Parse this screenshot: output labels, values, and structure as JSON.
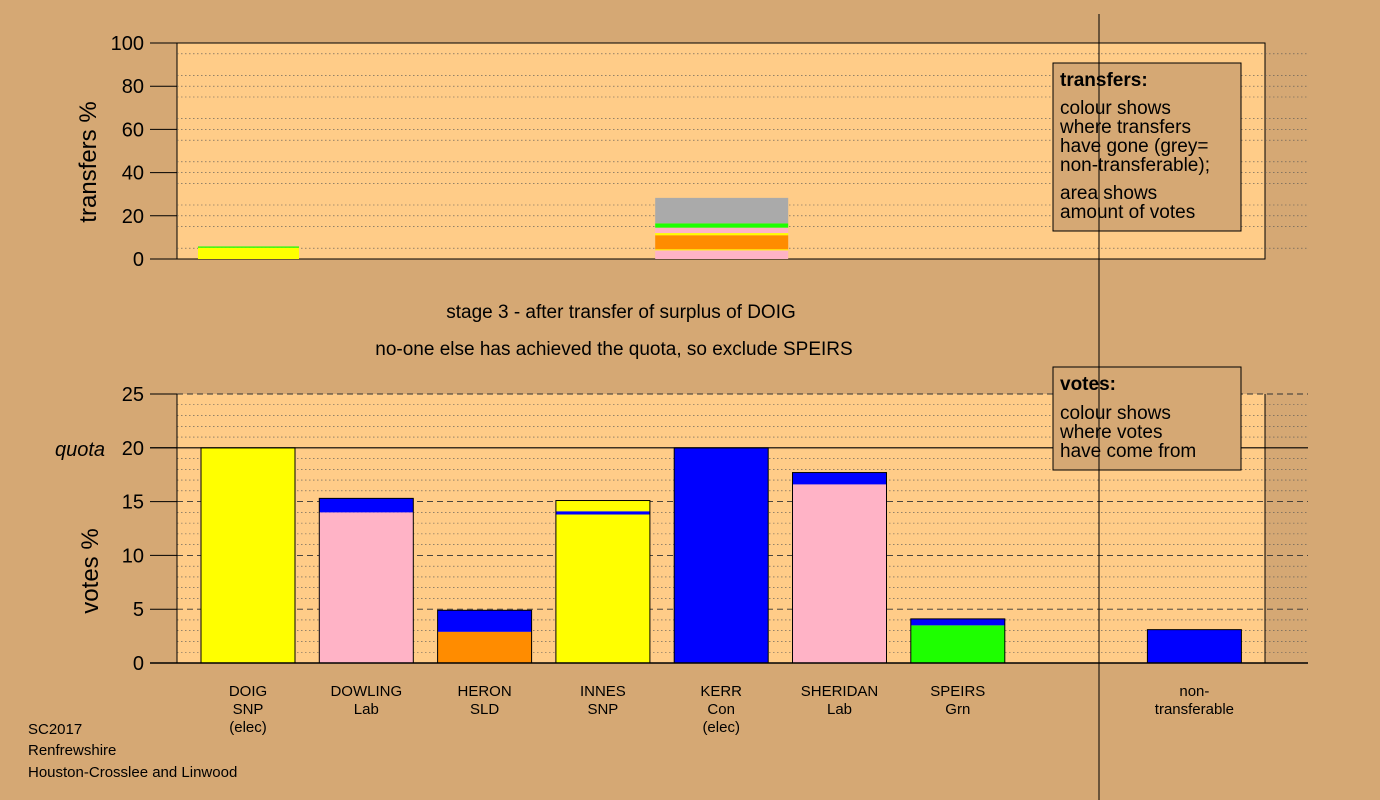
{
  "chart_data": [
    {
      "type": "bar",
      "subtype": "stacked",
      "ylabel": "transfers %",
      "ylim": [
        0,
        100
      ],
      "yticks": [
        0,
        20,
        40,
        60,
        80,
        100
      ],
      "grid": "dotted",
      "stages": [
        {
          "category": "DOIG",
          "segments": [
            {
              "color": "#FFFF00",
              "value": 5.2
            },
            {
              "color": "#1EFF00",
              "value": 0.6
            }
          ]
        },
        {
          "category": "SPEIRS",
          "segments": [
            {
              "color": "#FFB3C6",
              "value": 4.0
            },
            {
              "color": "#FFFF00",
              "value": 0.5
            },
            {
              "color": "#FF8C00",
              "value": 6.5
            },
            {
              "color": "#FFFF00",
              "value": 1.0
            },
            {
              "color": "#FFB3C6",
              "value": 2.5
            },
            {
              "color": "#1EFF00",
              "value": 2.0
            },
            {
              "color": "#AAAAAA",
              "value": 11.8
            }
          ]
        }
      ],
      "legend": {
        "title": "transfers:",
        "lines1": [
          "colour shows",
          "where transfers",
          "have gone (grey=",
          "non-transferable);"
        ],
        "lines2": [
          "area shows",
          "amount of votes"
        ]
      }
    },
    {
      "type": "bar",
      "subtype": "stacked",
      "ylabel": "votes %",
      "ylim": [
        0,
        25
      ],
      "yticks": [
        0,
        5,
        10,
        15,
        20,
        25
      ],
      "quota": 20,
      "quota_label": "quota",
      "grid": "dashed",
      "categories": [
        {
          "lines": [
            "DOIG",
            "SNP",
            "(elec)"
          ],
          "segments": [
            {
              "color": "#FFFF00",
              "value": 20.0
            }
          ]
        },
        {
          "lines": [
            "DOWLING",
            "Lab"
          ],
          "segments": [
            {
              "color": "#FFB3C6",
              "value": 14.0
            },
            {
              "color": "#0000FF",
              "value": 1.3
            }
          ]
        },
        {
          "lines": [
            "HERON",
            "SLD"
          ],
          "segments": [
            {
              "color": "#FF8C00",
              "value": 2.9
            },
            {
              "color": "#0000FF",
              "value": 2.0
            }
          ]
        },
        {
          "lines": [
            "INNES",
            "SNP"
          ],
          "segments": [
            {
              "color": "#FFFF00",
              "value": 13.8
            },
            {
              "color": "#0000FF",
              "value": 0.3
            },
            {
              "color": "#FFFF00",
              "value": 1.0
            }
          ]
        },
        {
          "lines": [
            "KERR",
            "Con",
            "(elec)"
          ],
          "segments": [
            {
              "color": "#0000FF",
              "value": 20.0
            }
          ]
        },
        {
          "lines": [
            "SHERIDAN",
            "Lab"
          ],
          "segments": [
            {
              "color": "#FFB3C6",
              "value": 16.6
            },
            {
              "color": "#0000FF",
              "value": 1.1
            }
          ]
        },
        {
          "lines": [
            "SPEIRS",
            "Grn"
          ],
          "segments": [
            {
              "color": "#1EFF00",
              "value": 3.5
            },
            {
              "color": "#0000FF",
              "value": 0.6
            }
          ]
        },
        {
          "lines": [
            "non-",
            "transferable"
          ],
          "segments": [
            {
              "color": "#0000FF",
              "value": 3.1
            }
          ]
        }
      ],
      "legend": {
        "title": "votes:",
        "lines": [
          "colour shows",
          "where votes",
          "have come from"
        ]
      }
    }
  ],
  "stage_text": {
    "line1": "stage 3 - after transfer of surplus of DOIG",
    "line2": "no-one else has achieved the quota, so exclude SPEIRS"
  },
  "footer": {
    "line1": "SC2017",
    "line2": "Renfrewshire",
    "line3": "Houston-Crosslee and Linwood"
  }
}
